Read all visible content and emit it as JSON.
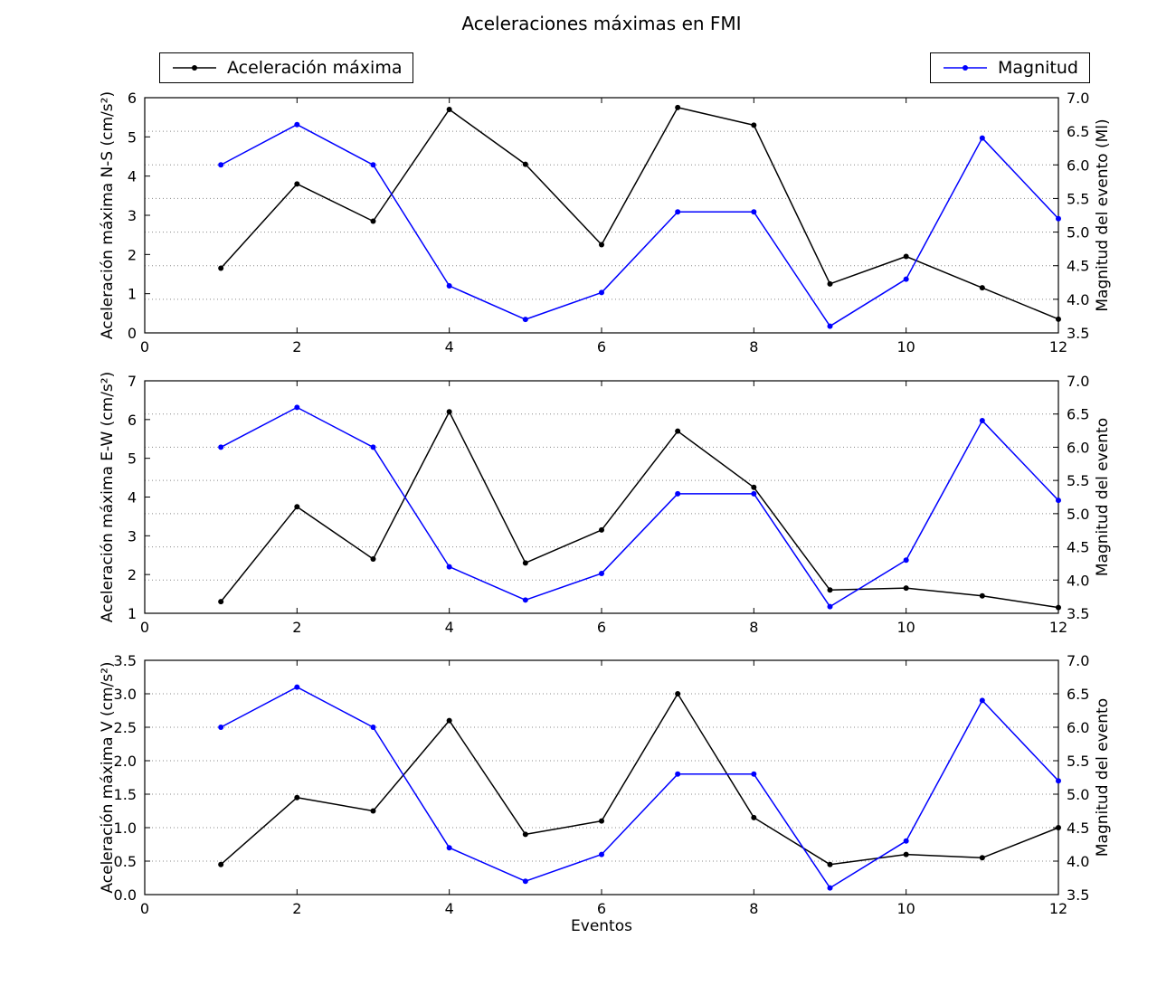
{
  "title": "Aceleraciones máximas en FMI",
  "xlabel": "Eventos",
  "legends": {
    "acceleration": "Aceleración máxima",
    "magnitude": "Magnitud"
  },
  "colors": {
    "acceleration": "#000000",
    "magnitude": "#0000ff",
    "grid": "#888888",
    "axis": "#000000"
  },
  "chart_data": [
    {
      "type": "line",
      "id": "ns",
      "ylabel_left": "Aceleración máxima N-S (cm/s²)",
      "ylabel_right": "Magnitud del evento (Ml)",
      "x": [
        1,
        2,
        3,
        4,
        5,
        6,
        7,
        8,
        9,
        10,
        11,
        12
      ],
      "xlim": [
        0,
        12
      ],
      "xticks": [
        0,
        2,
        4,
        6,
        8,
        10,
        12
      ],
      "ylim_left": [
        0,
        6
      ],
      "yticks_left": {
        "min": 0,
        "max": 6,
        "step": 1,
        "decimals": 0
      },
      "ylim_right": [
        3.5,
        7.0
      ],
      "yticks_right": {
        "min": 3.5,
        "max": 7.0,
        "step": 0.5,
        "decimals": 1
      },
      "grid": "horizontal-dotted-at-right-ticks",
      "series": [
        {
          "name": "Aceleración máxima",
          "axis": "left",
          "color": "#000000",
          "values": [
            1.65,
            3.8,
            2.85,
            5.7,
            4.3,
            2.25,
            5.75,
            5.3,
            1.25,
            1.95,
            1.15,
            0.35
          ]
        },
        {
          "name": "Magnitud",
          "axis": "right",
          "color": "#0000ff",
          "values": [
            6.0,
            6.6,
            6.0,
            4.2,
            3.7,
            4.1,
            5.3,
            5.3,
            3.6,
            4.3,
            6.4,
            5.2
          ]
        }
      ]
    },
    {
      "type": "line",
      "id": "ew",
      "ylabel_left": "Aceleración máxima E-W (cm/s²)",
      "ylabel_right": "Magnitud del evento",
      "x": [
        1,
        2,
        3,
        4,
        5,
        6,
        7,
        8,
        9,
        10,
        11,
        12
      ],
      "xlim": [
        0,
        12
      ],
      "xticks": [
        0,
        2,
        4,
        6,
        8,
        10,
        12
      ],
      "ylim_left": [
        1,
        7
      ],
      "yticks_left": {
        "min": 1,
        "max": 7,
        "step": 1,
        "decimals": 0
      },
      "ylim_right": [
        3.5,
        7.0
      ],
      "yticks_right": {
        "min": 3.5,
        "max": 7.0,
        "step": 0.5,
        "decimals": 1
      },
      "grid": "horizontal-dotted-at-right-ticks",
      "series": [
        {
          "name": "Aceleración máxima",
          "axis": "left",
          "color": "#000000",
          "values": [
            1.3,
            3.75,
            2.4,
            6.2,
            2.3,
            3.15,
            5.7,
            4.25,
            1.6,
            1.65,
            1.45,
            1.15
          ]
        },
        {
          "name": "Magnitud",
          "axis": "right",
          "color": "#0000ff",
          "values": [
            6.0,
            6.6,
            6.0,
            4.2,
            3.7,
            4.1,
            5.3,
            5.3,
            3.6,
            4.3,
            6.4,
            5.2
          ]
        }
      ]
    },
    {
      "type": "line",
      "id": "v",
      "ylabel_left": "Aceleración máxima V (cm/s²)",
      "ylabel_right": "Magnitud del evento",
      "x": [
        1,
        2,
        3,
        4,
        5,
        6,
        7,
        8,
        9,
        10,
        11,
        12
      ],
      "xlim": [
        0,
        12
      ],
      "xticks": [
        0,
        2,
        4,
        6,
        8,
        10,
        12
      ],
      "ylim_left": [
        0,
        3.5
      ],
      "yticks_left": {
        "min": 0,
        "max": 3.5,
        "step": 0.5,
        "decimals": 1
      },
      "ylim_right": [
        3.5,
        7.0
      ],
      "yticks_right": {
        "min": 3.5,
        "max": 7.0,
        "step": 0.5,
        "decimals": 1
      },
      "grid": "horizontal-dotted-at-right-ticks",
      "series": [
        {
          "name": "Aceleración máxima",
          "axis": "left",
          "color": "#000000",
          "values": [
            0.45,
            1.45,
            1.25,
            2.6,
            0.9,
            1.1,
            3.0,
            1.15,
            0.45,
            0.6,
            0.55,
            1.0
          ]
        },
        {
          "name": "Magnitud",
          "axis": "right",
          "color": "#0000ff",
          "values": [
            6.0,
            6.6,
            6.0,
            4.2,
            3.7,
            4.1,
            5.3,
            5.3,
            3.6,
            4.3,
            6.4,
            5.2
          ]
        }
      ]
    }
  ]
}
